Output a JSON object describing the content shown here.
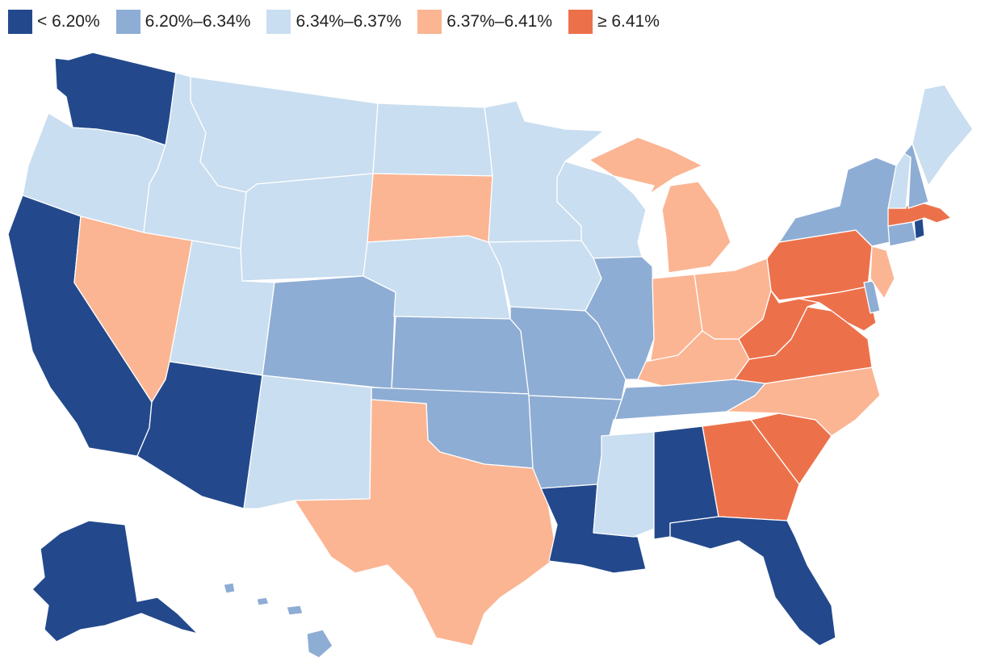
{
  "legend": [
    {
      "label": "< 6.20%",
      "color": "#23498c"
    },
    {
      "label": "6.20%–6.34%",
      "color": "#8eadd4"
    },
    {
      "label": "6.34%–6.37%",
      "color": "#c9def0"
    },
    {
      "label": "6.37%–6.41%",
      "color": "#fbb593"
    },
    {
      "label": "≥ 6.41%",
      "color": "#ec714b"
    }
  ],
  "map": {
    "type": "choropleth",
    "region": "United States",
    "states": {
      "WA": 0,
      "CA": 0,
      "AZ": 0,
      "LA": 0,
      "AL": 0,
      "FL": 0,
      "AK": 0,
      "RI": 0,
      "CO": 1,
      "KS": 1,
      "OK": 1,
      "MO": 1,
      "AR": 1,
      "IL": 1,
      "TN": 1,
      "NY": 1,
      "NH": 1,
      "CT": 1,
      "DE": 1,
      "HI": 1,
      "OR": 2,
      "ID": 2,
      "MT": 2,
      "WY": 2,
      "UT": 2,
      "NM": 2,
      "ND": 2,
      "NE": 2,
      "MN": 2,
      "WI": 2,
      "IA": 2,
      "MS": 2,
      "ME": 2,
      "VT": 2,
      "NV": 3,
      "SD": 3,
      "TX": 3,
      "MI": 3,
      "IN": 3,
      "OH": 3,
      "KY": 3,
      "NC": 3,
      "NJ": 3,
      "PA": 4,
      "WV": 4,
      "VA": 4,
      "MD": 4,
      "GA": 4,
      "SC": 4,
      "MA": 4
    }
  }
}
